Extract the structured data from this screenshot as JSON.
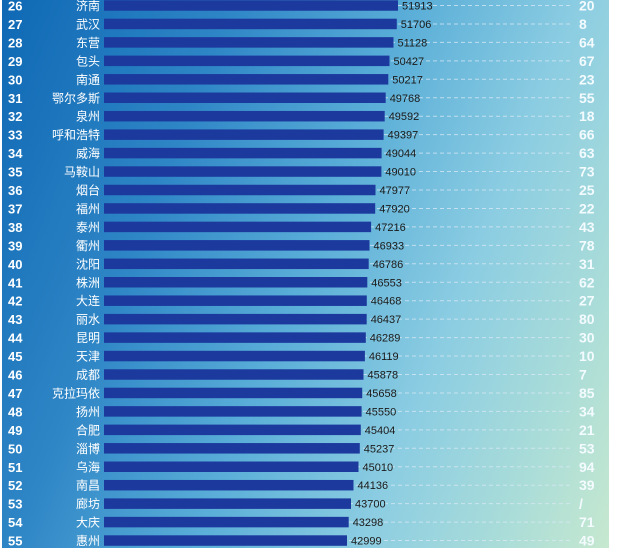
{
  "chart_data": {
    "type": "bar",
    "orientation": "horizontal",
    "ranks": [
      "26",
      "27",
      "28",
      "29",
      "30",
      "31",
      "32",
      "33",
      "34",
      "35",
      "36",
      "37",
      "38",
      "39",
      "40",
      "41",
      "42",
      "43",
      "44",
      "45",
      "46",
      "47",
      "48",
      "49",
      "50",
      "51",
      "52",
      "53",
      "54",
      "55"
    ],
    "categories": [
      "济南",
      "武汉",
      "东营",
      "包头",
      "南通",
      "鄂尔多斯",
      "泉州",
      "呼和浩特",
      "威海",
      "马鞍山",
      "烟台",
      "福州",
      "泰州",
      "衢州",
      "沈阳",
      "株洲",
      "大连",
      "丽水",
      "昆明",
      "天津",
      "成都",
      "克拉玛依",
      "扬州",
      "合肥",
      "淄博",
      "乌海",
      "南昌",
      "廊坊",
      "大庆",
      "惠州"
    ],
    "values": [
      51913,
      51706,
      51128,
      50427,
      50217,
      49768,
      49592,
      49397,
      49044,
      49010,
      47977,
      47920,
      47216,
      46933,
      46786,
      46553,
      46468,
      46437,
      46289,
      46119,
      45878,
      45658,
      45550,
      45404,
      45237,
      45010,
      44136,
      43700,
      43298,
      42999
    ],
    "value_labels": [
      "51913",
      "51706",
      "51128",
      "50427",
      "50217",
      "49768",
      "49592",
      "49397",
      "49044",
      "49010",
      "47977",
      "47920",
      "47216",
      "46933",
      "46786",
      "46553",
      "46468",
      "46437",
      "46289",
      "46119",
      "45878",
      "45658",
      "45550",
      "45404",
      "45237",
      "45010",
      "44136",
      "43700",
      "43298",
      "42999"
    ],
    "right_labels": [
      "20",
      "8",
      "64",
      "67",
      "23",
      "55",
      "18",
      "66",
      "63",
      "73",
      "25",
      "22",
      "43",
      "78",
      "31",
      "62",
      "27",
      "80",
      "30",
      "10",
      "7",
      "85",
      "34",
      "21",
      "53",
      "94",
      "39",
      "/",
      "71",
      "49"
    ],
    "colors": {
      "bar": "#1c3a9e",
      "text": "#ffffff",
      "value_text": "#1a1a1a"
    },
    "grid": false,
    "legend": "none"
  }
}
